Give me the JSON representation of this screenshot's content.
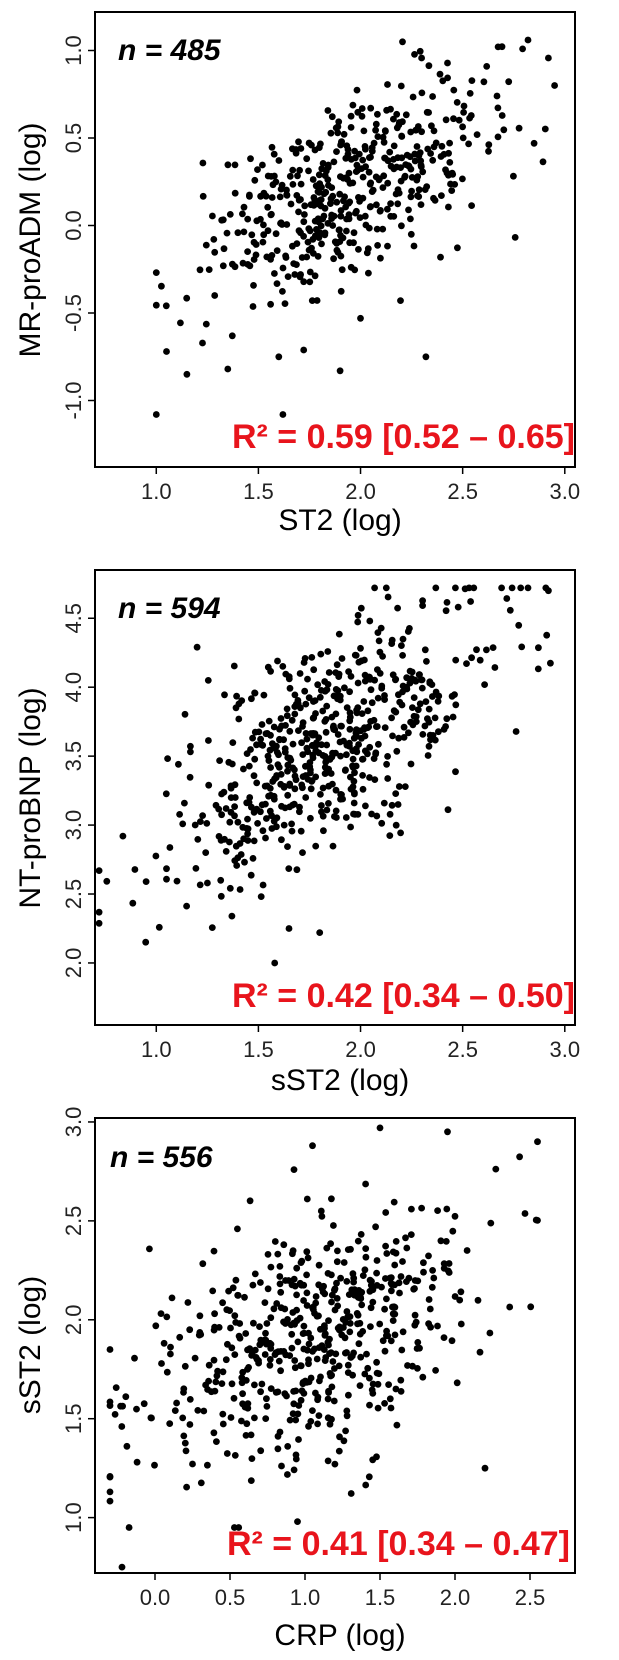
{
  "chart_data": [
    {
      "type": "scatter",
      "n_label": "n = 485",
      "r2_label": "R² = 0.59 [0.52 – 0.65]",
      "xlabel": "ST2 (log)",
      "ylabel": "MR-proADM (log)",
      "xlim": [
        0.7,
        3.05
      ],
      "ylim": [
        -1.38,
        1.22
      ],
      "xticks": [
        1.0,
        1.5,
        2.0,
        2.5,
        3.0
      ],
      "xtick_labels": [
        "1.0",
        "1.5",
        "2.0",
        "2.5",
        "3.0"
      ],
      "yticks": [
        -1.0,
        -0.5,
        0.0,
        0.5,
        1.0
      ],
      "ytick_labels": [
        "-1.0",
        "-0.5",
        "0.0",
        "0.5",
        "1.0"
      ],
      "n_points": 485,
      "trend": {
        "intercept": -0.81,
        "slope": 0.53
      },
      "x_distribution": {
        "mean": 1.95,
        "sd": 0.38
      },
      "y_noise_sd": 0.25,
      "x_clip": [
        1.0,
        3.0
      ],
      "y_clip": [
        -1.1,
        1.05
      ],
      "seed": 485,
      "outliers": [
        [
          2.82,
          1.06
        ],
        [
          1.9,
          -0.83
        ],
        [
          2.0,
          -0.53
        ],
        [
          2.32,
          -0.75
        ],
        [
          1.6,
          -0.75
        ],
        [
          1.35,
          -0.82
        ],
        [
          1.15,
          -0.85
        ],
        [
          1.05,
          -0.72
        ],
        [
          1.0,
          -1.08
        ],
        [
          1.62,
          -1.08
        ],
        [
          2.95,
          0.8
        ],
        [
          2.85,
          0.47
        ]
      ]
    },
    {
      "type": "scatter",
      "n_label": "n = 594",
      "r2_label": "R² = 0.42 [0.34 – 0.50]",
      "xlabel": "sST2 (log)",
      "ylabel": "NT-proBNP (log)",
      "xlim": [
        0.7,
        3.05
      ],
      "ylim": [
        1.55,
        4.85
      ],
      "xticks": [
        1.0,
        1.5,
        2.0,
        2.5,
        3.0
      ],
      "xtick_labels": [
        "1.0",
        "1.5",
        "2.0",
        "2.5",
        "3.0"
      ],
      "yticks": [
        2.0,
        2.5,
        3.0,
        3.5,
        4.0,
        4.5
      ],
      "ytick_labels": [
        "2.0",
        "2.5",
        "3.0",
        "3.5",
        "4.0",
        "4.5"
      ],
      "n_points": 594,
      "trend": {
        "intercept": 2.1,
        "slope": 0.8
      },
      "x_distribution": {
        "mean": 1.85,
        "sd": 0.35
      },
      "y_noise_sd": 0.38,
      "x_clip": [
        0.72,
        2.95
      ],
      "y_clip": [
        2.0,
        4.72
      ],
      "seed": 594,
      "outliers": [
        [
          0.72,
          2.67
        ],
        [
          0.95,
          2.59
        ],
        [
          1.37,
          2.34
        ],
        [
          1.58,
          2.0
        ],
        [
          1.65,
          2.25
        ],
        [
          1.8,
          2.22
        ],
        [
          1.2,
          4.29
        ],
        [
          2.82,
          4.72
        ],
        [
          2.92,
          4.7
        ]
      ]
    },
    {
      "type": "scatter",
      "n_label": "n = 556",
      "r2_label": "R² = 0.41 [0.34 – 0.47]",
      "xlabel": "CRP (log)",
      "ylabel": "sST2 (log)",
      "xlim": [
        -0.4,
        2.8
      ],
      "ylim": [
        0.72,
        3.02
      ],
      "xticks": [
        0.0,
        0.5,
        1.0,
        1.5,
        2.0,
        2.5
      ],
      "xtick_labels": [
        "0.0",
        "0.5",
        "1.0",
        "1.5",
        "2.0",
        "2.5"
      ],
      "yticks": [
        1.0,
        1.5,
        2.0,
        2.5,
        3.0
      ],
      "ytick_labels": [
        "1.0",
        "1.5",
        "2.0",
        "2.5",
        "3.0"
      ],
      "n_points": 556,
      "trend": {
        "intercept": 1.62,
        "slope": 0.26
      },
      "x_distribution": {
        "mean": 1.05,
        "sd": 0.55
      },
      "y_noise_sd": 0.3,
      "x_clip": [
        -0.3,
        2.55
      ],
      "y_clip": [
        0.95,
        2.98
      ],
      "seed": 556,
      "outliers": [
        [
          -0.22,
          0.75
        ],
        [
          -0.3,
          1.85
        ],
        [
          -0.3,
          1.13
        ],
        [
          1.05,
          2.88
        ],
        [
          1.5,
          2.97
        ],
        [
          1.95,
          2.95
        ],
        [
          2.55,
          2.9
        ],
        [
          0.95,
          0.98
        ],
        [
          2.2,
          1.25
        ]
      ]
    }
  ]
}
